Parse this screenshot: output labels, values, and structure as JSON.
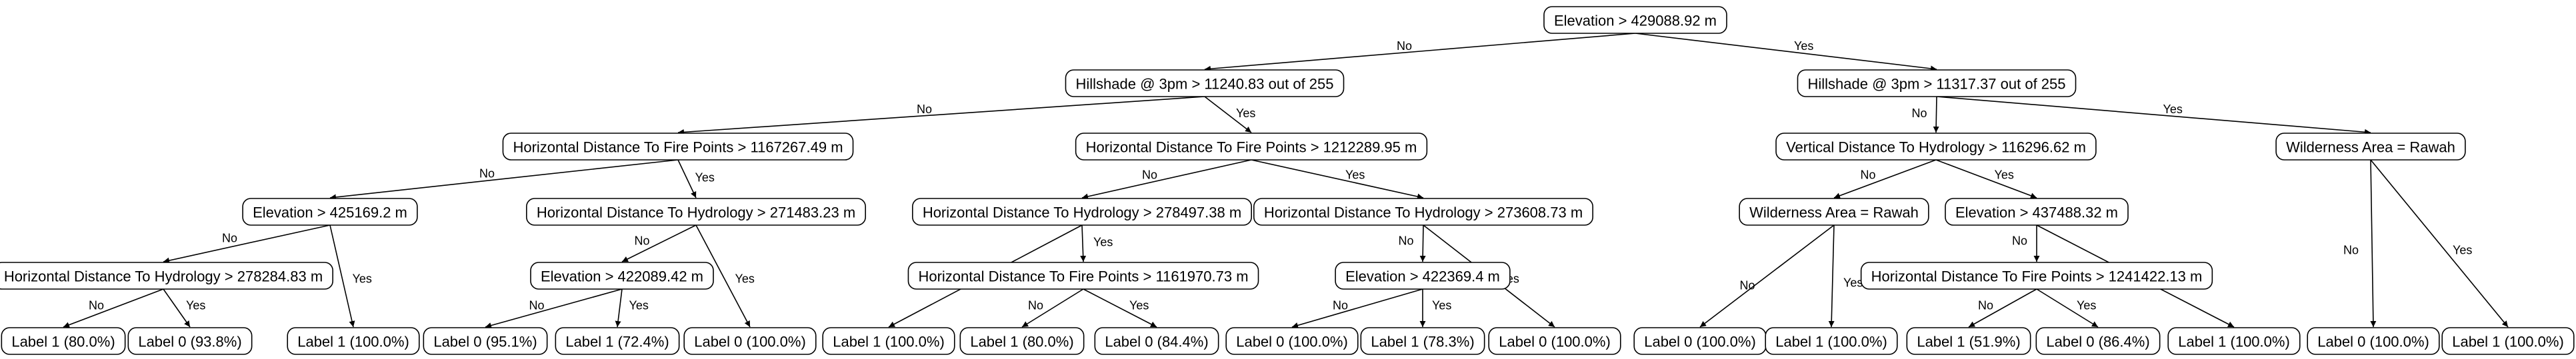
{
  "tree": {
    "nodes": [
      {
        "id": "n0",
        "label": "Elevation > 429088.92 m"
      },
      {
        "id": "n1",
        "label": "Hillshade @ 3pm > 11240.83 out of 255"
      },
      {
        "id": "n2",
        "label": "Hillshade @ 3pm > 11317.37 out of 255"
      },
      {
        "id": "n3",
        "label": "Horizontal Distance To Fire Points > 1167267.49 m"
      },
      {
        "id": "n4",
        "label": "Horizontal Distance To Fire Points > 1212289.95 m"
      },
      {
        "id": "n5",
        "label": "Vertical Distance To Hydrology > 116296.62 m"
      },
      {
        "id": "n6",
        "label": "Wilderness Area = Rawah"
      },
      {
        "id": "n7",
        "label": "Elevation > 425169.2 m"
      },
      {
        "id": "n8",
        "label": "Horizontal Distance To Hydrology > 271483.23 m"
      },
      {
        "id": "n9",
        "label": "Horizontal Distance To Hydrology > 278497.38 m"
      },
      {
        "id": "n10",
        "label": "Horizontal Distance To Hydrology > 273608.73 m"
      },
      {
        "id": "n11",
        "label": "Wilderness Area = Rawah"
      },
      {
        "id": "n12",
        "label": "Elevation > 437488.32 m"
      },
      {
        "id": "n13",
        "label": "Horizontal Distance To Hydrology > 278284.83 m"
      },
      {
        "id": "n14",
        "label": "Elevation > 422089.42 m"
      },
      {
        "id": "n15",
        "label": "Horizontal Distance To Fire Points > 1161970.73 m"
      },
      {
        "id": "n16",
        "label": "Elevation > 422369.4 m"
      },
      {
        "id": "n17",
        "label": "Horizontal Distance To Fire Points > 1241422.13 m"
      },
      {
        "id": "n18",
        "label": "Label 1 (80.0%)"
      },
      {
        "id": "n19",
        "label": "Label 0 (93.8%)"
      },
      {
        "id": "n20",
        "label": "Label 1 (100.0%)"
      },
      {
        "id": "n21",
        "label": "Label 0 (95.1%)"
      },
      {
        "id": "n22",
        "label": "Label 1 (72.4%)"
      },
      {
        "id": "n23",
        "label": "Label 0 (100.0%)"
      },
      {
        "id": "n24",
        "label": "Label 1 (100.0%)"
      },
      {
        "id": "n25",
        "label": "Label 1 (80.0%)"
      },
      {
        "id": "n26",
        "label": "Label 0 (84.4%)"
      },
      {
        "id": "n27",
        "label": "Label 0 (100.0%)"
      },
      {
        "id": "n28",
        "label": "Label 1 (78.3%)"
      },
      {
        "id": "n29",
        "label": "Label 0 (100.0%)"
      },
      {
        "id": "n30",
        "label": "Label 0 (100.0%)"
      },
      {
        "id": "n31",
        "label": "Label 1 (100.0%)"
      },
      {
        "id": "n32",
        "label": "Label 1 (51.9%)"
      },
      {
        "id": "n33",
        "label": "Label 0 (86.4%)"
      },
      {
        "id": "n34",
        "label": "Label 1 (100.0%)"
      },
      {
        "id": "n35",
        "label": "Label 0 (100.0%)"
      },
      {
        "id": "n36",
        "label": "Label 1 (100.0%)"
      }
    ],
    "edges": [
      {
        "from": "n0",
        "to": "n1",
        "label": "No"
      },
      {
        "from": "n0",
        "to": "n2",
        "label": "Yes"
      },
      {
        "from": "n1",
        "to": "n3",
        "label": "No"
      },
      {
        "from": "n1",
        "to": "n4",
        "label": "Yes"
      },
      {
        "from": "n2",
        "to": "n5",
        "label": "No"
      },
      {
        "from": "n2",
        "to": "n6",
        "label": "Yes"
      },
      {
        "from": "n3",
        "to": "n7",
        "label": "No"
      },
      {
        "from": "n3",
        "to": "n8",
        "label": "Yes"
      },
      {
        "from": "n4",
        "to": "n9",
        "label": "No"
      },
      {
        "from": "n4",
        "to": "n10",
        "label": "Yes"
      },
      {
        "from": "n5",
        "to": "n11",
        "label": "No"
      },
      {
        "from": "n5",
        "to": "n12",
        "label": "Yes"
      },
      {
        "from": "n6",
        "to": "n35",
        "label": "No"
      },
      {
        "from": "n6",
        "to": "n36",
        "label": "Yes"
      },
      {
        "from": "n7",
        "to": "n13",
        "label": "No"
      },
      {
        "from": "n7",
        "to": "n20",
        "label": "Yes"
      },
      {
        "from": "n8",
        "to": "n14",
        "label": "No"
      },
      {
        "from": "n8",
        "to": "n23",
        "label": "Yes"
      },
      {
        "from": "n9",
        "to": "n24",
        "label": "No"
      },
      {
        "from": "n9",
        "to": "n15",
        "label": "Yes"
      },
      {
        "from": "n10",
        "to": "n16",
        "label": "No"
      },
      {
        "from": "n10",
        "to": "n29",
        "label": "Yes"
      },
      {
        "from": "n11",
        "to": "n30",
        "label": "No"
      },
      {
        "from": "n11",
        "to": "n31",
        "label": "Yes"
      },
      {
        "from": "n12",
        "to": "n17",
        "label": "No"
      },
      {
        "from": "n12",
        "to": "n34",
        "label": "Yes"
      },
      {
        "from": "n13",
        "to": "n18",
        "label": "No"
      },
      {
        "from": "n13",
        "to": "n19",
        "label": "Yes"
      },
      {
        "from": "n14",
        "to": "n21",
        "label": "No"
      },
      {
        "from": "n14",
        "to": "n22",
        "label": "Yes"
      },
      {
        "from": "n15",
        "to": "n25",
        "label": "No"
      },
      {
        "from": "n15",
        "to": "n26",
        "label": "Yes"
      },
      {
        "from": "n16",
        "to": "n27",
        "label": "No"
      },
      {
        "from": "n16",
        "to": "n28",
        "label": "Yes"
      },
      {
        "from": "n17",
        "to": "n32",
        "label": "No"
      },
      {
        "from": "n17",
        "to": "n33",
        "label": "Yes"
      }
    ]
  }
}
